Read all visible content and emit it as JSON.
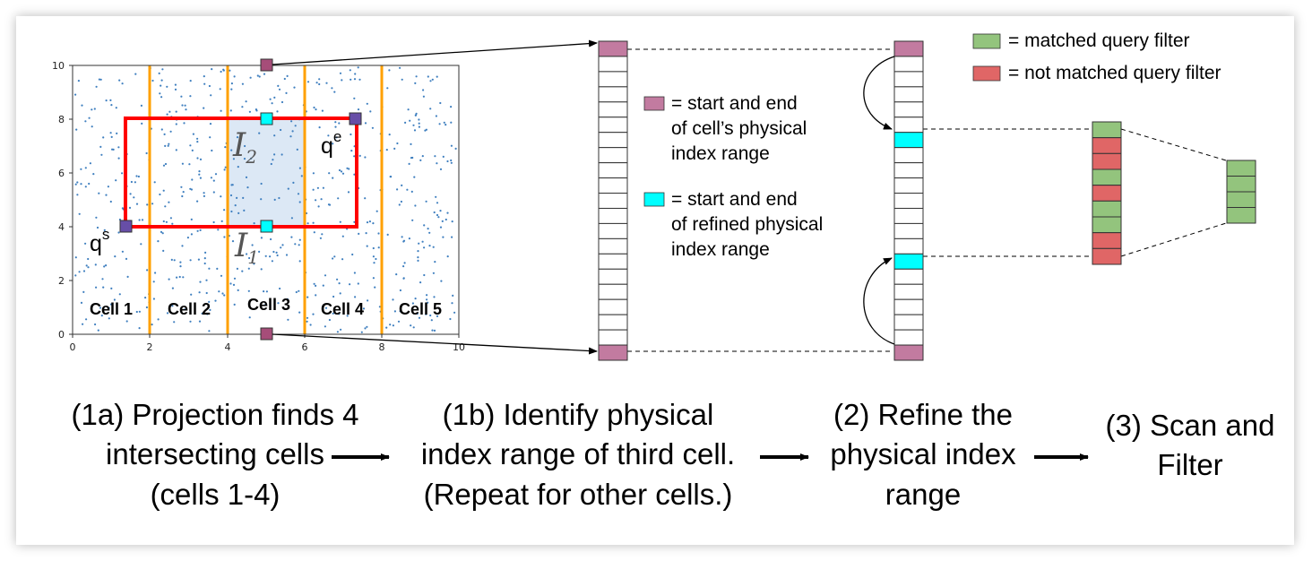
{
  "plot": {
    "x_ticks": [
      "0",
      "2",
      "4",
      "6",
      "8",
      "10"
    ],
    "y_ticks": [
      "0",
      "2",
      "4",
      "6",
      "8",
      "10"
    ],
    "cells": [
      "Cell 1",
      "Cell 2",
      "Cell 3",
      "Cell 4",
      "Cell 5"
    ],
    "query_start": {
      "label": "q",
      "sup": "s"
    },
    "query_end": {
      "label": "q",
      "sup": "e"
    },
    "interval_1": {
      "label": "I",
      "sub": "1"
    },
    "interval_2": {
      "label": "I",
      "sub": "2"
    }
  },
  "legend_left": {
    "purple": [
      "= start and end",
      "of cell’s physical",
      "index range"
    ],
    "cyan": [
      "= start and end",
      "of refined physical",
      "index range"
    ]
  },
  "legend_right": {
    "matched": "= matched query filter",
    "not_matched": "= not matched query filter"
  },
  "steps": {
    "step_1a": [
      "(1a) Projection finds 4",
      "intersecting cells",
      "(cells 1-4)"
    ],
    "step_1b": [
      "(1b) Identify physical",
      "index range of third cell.",
      "(Repeat for other cells.)"
    ],
    "step_2": [
      "(2) Refine the",
      "physical index",
      "range"
    ],
    "step_3": [
      "(3) Scan and",
      "Filter"
    ]
  },
  "colors": {
    "purple_marker": "#c27ba0",
    "dark_marker": "#674ea7",
    "cyan_marker": "#00ffff",
    "green": "#93c47d",
    "red": "#e06666",
    "query_box": "#ff0000",
    "cell_divider": "#ffa000",
    "scatter": "#3f7fbf",
    "highlight": "#dce8f5"
  }
}
